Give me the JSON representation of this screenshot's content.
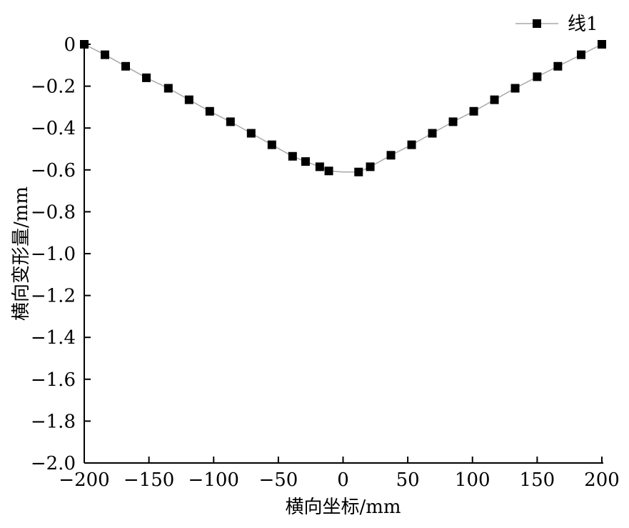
{
  "chart_data": {
    "type": "line",
    "title": "",
    "xlabel": "横向坐标/mm",
    "ylabel": "横向变形量/mm",
    "xlim": [
      -200,
      200
    ],
    "ylim": [
      -2.0,
      0
    ],
    "x_ticks": [
      -200,
      -150,
      -100,
      -50,
      0,
      50,
      100,
      150,
      200
    ],
    "x_tick_labels": [
      "−200",
      "−150",
      "−100",
      "−50",
      "0",
      "50",
      "100",
      "150",
      "200"
    ],
    "y_ticks": [
      0,
      -0.2,
      -0.4,
      -0.6,
      -0.8,
      -1.0,
      -1.2,
      -1.4,
      -1.6,
      -1.8,
      -2.0
    ],
    "y_tick_labels": [
      "0",
      "−0.2",
      "−0.4",
      "−0.6",
      "−0.8",
      "−1.0",
      "−1.2",
      "−1.4",
      "−1.6",
      "−1.8",
      "−2.0"
    ],
    "grid": false,
    "legend_position": "top-right",
    "colors": {
      "line": "#a8a8a8",
      "marker": "#000000",
      "axis": "#000000"
    },
    "series": [
      {
        "name": "线1",
        "x": [
          -200,
          -184,
          -168,
          -152,
          -135,
          -119,
          -103,
          -87,
          -71,
          -55,
          -39,
          -29,
          -18,
          -11,
          0,
          12,
          21,
          37,
          53,
          69,
          85,
          101,
          117,
          133,
          150,
          166,
          184,
          200
        ],
        "y": [
          0.0,
          -0.05,
          -0.105,
          -0.16,
          -0.21,
          -0.265,
          -0.32,
          -0.37,
          -0.425,
          -0.48,
          -0.535,
          -0.56,
          -0.585,
          -0.605,
          -0.61,
          -0.61,
          -0.585,
          -0.53,
          -0.48,
          -0.425,
          -0.37,
          -0.32,
          -0.265,
          -0.21,
          -0.155,
          -0.105,
          -0.05,
          0.0
        ],
        "marker_x": [
          -200,
          -184,
          -168,
          -152,
          -135,
          -119,
          -103,
          -87,
          -71,
          -55,
          -39,
          -29,
          -18,
          -11,
          12,
          21,
          37,
          53,
          69,
          85,
          101,
          117,
          133,
          150,
          166,
          184,
          200
        ],
        "marker_y": [
          0.0,
          -0.05,
          -0.105,
          -0.16,
          -0.21,
          -0.265,
          -0.32,
          -0.37,
          -0.425,
          -0.48,
          -0.535,
          -0.56,
          -0.585,
          -0.605,
          -0.61,
          -0.585,
          -0.53,
          -0.48,
          -0.425,
          -0.37,
          -0.32,
          -0.265,
          -0.21,
          -0.155,
          -0.105,
          -0.05,
          0.0
        ]
      }
    ]
  }
}
